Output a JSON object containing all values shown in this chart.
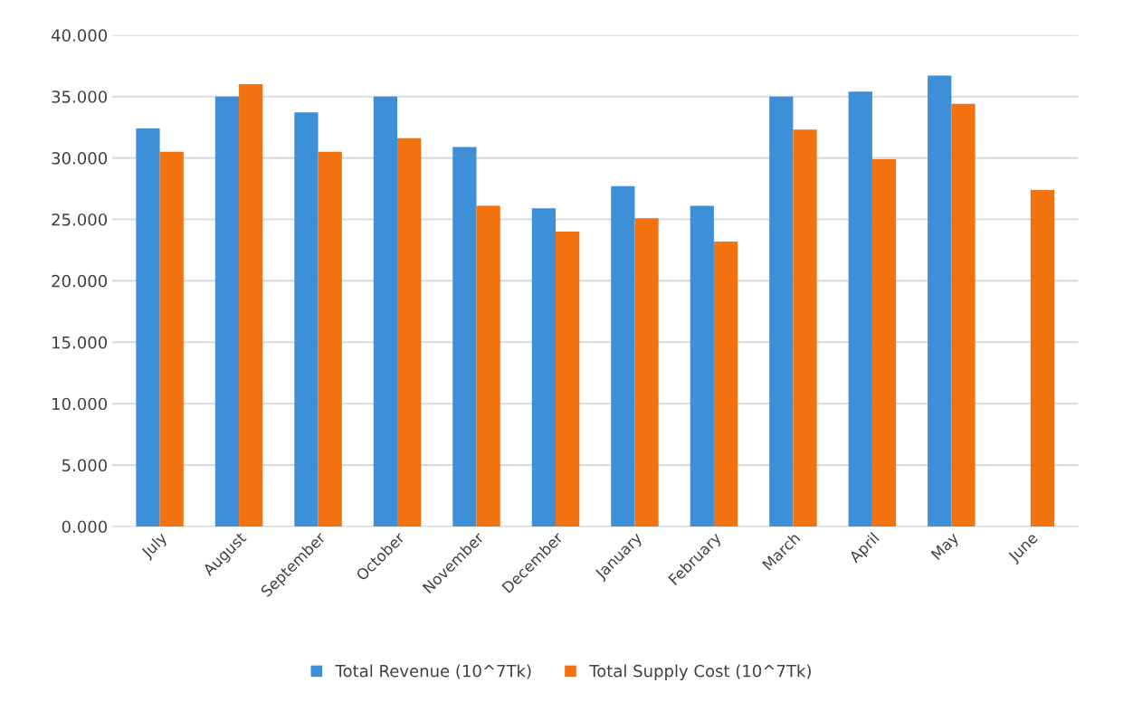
{
  "chart_data": {
    "type": "bar",
    "categories": [
      "July",
      "August",
      "September",
      "October",
      "November",
      "December",
      "January",
      "February",
      "March",
      "April",
      "May",
      "June"
    ],
    "series": [
      {
        "name": "Total Revenue (10^7Tk)",
        "color": "#3d8fd8",
        "values": [
          32.4,
          35.0,
          33.7,
          35.0,
          30.9,
          25.9,
          27.7,
          26.1,
          35.0,
          35.4,
          36.7,
          0
        ]
      },
      {
        "name": "Total Supply Cost (10^7Tk)",
        "color": "#f2720f",
        "values": [
          30.5,
          36.0,
          30.5,
          31.6,
          26.1,
          24.0,
          25.1,
          23.2,
          32.3,
          29.9,
          34.4,
          27.4
        ]
      }
    ],
    "ylim": [
      0,
      40
    ],
    "yticks": [
      {
        "value": 0,
        "label": "0.000"
      },
      {
        "value": 5,
        "label": "5.000"
      },
      {
        "value": 10,
        "label": "10.000"
      },
      {
        "value": 15,
        "label": "15.000"
      },
      {
        "value": 20,
        "label": "20.000"
      },
      {
        "value": 25,
        "label": "25.000"
      },
      {
        "value": 30,
        "label": "30.000"
      },
      {
        "value": 35,
        "label": "35.000"
      },
      {
        "value": 40,
        "label": "40.000"
      }
    ],
    "grid": "y",
    "legend": "bottom"
  }
}
